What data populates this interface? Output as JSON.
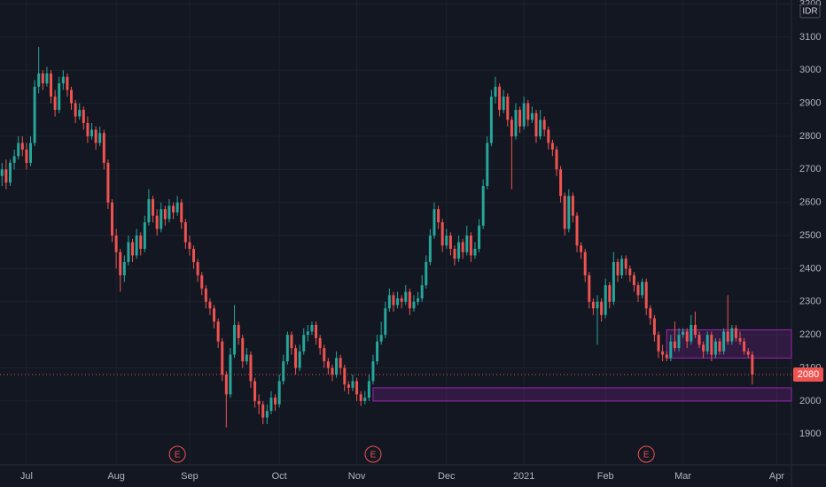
{
  "chart_data": {
    "type": "candlestick",
    "currency": "IDR",
    "up_color": "#26a69a",
    "down_color": "#ef5350",
    "zone_color": "#9c27b0",
    "xlim": [
      -0.5,
      193.6
    ],
    "ylim": [
      1807,
      3212
    ],
    "yticks": [
      1900,
      2000,
      2100,
      2200,
      2300,
      2400,
      2500,
      2600,
      2700,
      2800,
      2900,
      3000,
      3100,
      3200
    ],
    "xticks": [
      {
        "value": 6,
        "label": "Jul"
      },
      {
        "value": 28,
        "label": "Aug"
      },
      {
        "value": 46,
        "label": "Sep"
      },
      {
        "value": 68,
        "label": "Oct"
      },
      {
        "value": 87,
        "label": "Nov"
      },
      {
        "value": 109,
        "label": "Dec"
      },
      {
        "value": 128,
        "label": "2021"
      },
      {
        "value": 148,
        "label": "Feb"
      },
      {
        "value": 167,
        "label": "Mar"
      },
      {
        "value": 190,
        "label": "Apr"
      }
    ],
    "last_price": 2080,
    "zones": [
      {
        "start": 163,
        "low": 2130,
        "high": 2215
      },
      {
        "start": 91,
        "low": 2000,
        "high": 2040
      }
    ],
    "events": [
      {
        "index": 43,
        "label": "E"
      },
      {
        "index": 91,
        "label": "E"
      },
      {
        "index": 158,
        "label": "E"
      }
    ],
    "ohlc": [
      [
        2680,
        2720,
        2650,
        2700
      ],
      [
        2700,
        2730,
        2640,
        2660
      ],
      [
        2660,
        2730,
        2650,
        2720
      ],
      [
        2720,
        2760,
        2700,
        2740
      ],
      [
        2740,
        2800,
        2730,
        2780
      ],
      [
        2780,
        2800,
        2740,
        2760
      ],
      [
        2760,
        2780,
        2700,
        2720
      ],
      [
        2720,
        2800,
        2710,
        2780
      ],
      [
        2780,
        2970,
        2770,
        2950
      ],
      [
        2950,
        3070,
        2930,
        2990
      ],
      [
        2990,
        3000,
        2940,
        2960
      ],
      [
        2960,
        3010,
        2950,
        2990
      ],
      [
        2990,
        3000,
        2900,
        2920
      ],
      [
        2920,
        2940,
        2860,
        2880
      ],
      [
        2880,
        2980,
        2870,
        2960
      ],
      [
        2960,
        3000,
        2940,
        2980
      ],
      [
        2980,
        2990,
        2920,
        2940
      ],
      [
        2940,
        2950,
        2880,
        2900
      ],
      [
        2900,
        2910,
        2840,
        2860
      ],
      [
        2860,
        2900,
        2850,
        2880
      ],
      [
        2880,
        2890,
        2820,
        2840
      ],
      [
        2840,
        2860,
        2780,
        2800
      ],
      [
        2800,
        2840,
        2790,
        2820
      ],
      [
        2820,
        2830,
        2760,
        2780
      ],
      [
        2780,
        2830,
        2770,
        2810
      ],
      [
        2810,
        2820,
        2700,
        2720
      ],
      [
        2720,
        2730,
        2580,
        2600
      ],
      [
        2600,
        2610,
        2480,
        2500
      ],
      [
        2500,
        2520,
        2400,
        2450
      ],
      [
        2450,
        2460,
        2330,
        2380
      ],
      [
        2380,
        2440,
        2360,
        2420
      ],
      [
        2420,
        2500,
        2410,
        2480
      ],
      [
        2480,
        2490,
        2420,
        2440
      ],
      [
        2440,
        2520,
        2430,
        2500
      ],
      [
        2500,
        2510,
        2440,
        2460
      ],
      [
        2460,
        2560,
        2450,
        2540
      ],
      [
        2540,
        2640,
        2530,
        2610
      ],
      [
        2610,
        2620,
        2540,
        2560
      ],
      [
        2560,
        2580,
        2500,
        2520
      ],
      [
        2520,
        2600,
        2510,
        2580
      ],
      [
        2580,
        2590,
        2530,
        2550
      ],
      [
        2550,
        2610,
        2540,
        2590
      ],
      [
        2590,
        2600,
        2550,
        2570
      ],
      [
        2570,
        2620,
        2560,
        2600
      ],
      [
        2600,
        2610,
        2520,
        2540
      ],
      [
        2540,
        2550,
        2460,
        2480
      ],
      [
        2480,
        2500,
        2440,
        2460
      ],
      [
        2460,
        2470,
        2400,
        2420
      ],
      [
        2420,
        2430,
        2360,
        2380
      ],
      [
        2380,
        2390,
        2320,
        2340
      ],
      [
        2340,
        2350,
        2280,
        2300
      ],
      [
        2300,
        2310,
        2260,
        2280
      ],
      [
        2280,
        2290,
        2220,
        2240
      ],
      [
        2240,
        2250,
        2160,
        2180
      ],
      [
        2180,
        2190,
        2060,
        2080
      ],
      [
        2080,
        2090,
        1920,
        2020
      ],
      [
        2020,
        2160,
        2010,
        2140
      ],
      [
        2140,
        2290,
        2130,
        2230
      ],
      [
        2230,
        2240,
        2170,
        2190
      ],
      [
        2190,
        2200,
        2100,
        2120
      ],
      [
        2120,
        2160,
        2110,
        2140
      ],
      [
        2140,
        2150,
        2040,
        2060
      ],
      [
        2060,
        2070,
        1980,
        2000
      ],
      [
        2000,
        2020,
        1960,
        1990
      ],
      [
        1990,
        2000,
        1930,
        1950
      ],
      [
        1950,
        1990,
        1930,
        1970
      ],
      [
        1970,
        2030,
        1960,
        2010
      ],
      [
        2010,
        2020,
        1970,
        1990
      ],
      [
        1990,
        2080,
        1980,
        2060
      ],
      [
        2060,
        2140,
        2050,
        2120
      ],
      [
        2120,
        2210,
        2110,
        2200
      ],
      [
        2200,
        2210,
        2140,
        2160
      ],
      [
        2160,
        2170,
        2080,
        2100
      ],
      [
        2100,
        2170,
        2090,
        2150
      ],
      [
        2150,
        2220,
        2140,
        2200
      ],
      [
        2200,
        2230,
        2180,
        2210
      ],
      [
        2210,
        2240,
        2200,
        2230
      ],
      [
        2230,
        2240,
        2170,
        2190
      ],
      [
        2190,
        2200,
        2140,
        2160
      ],
      [
        2160,
        2170,
        2100,
        2120
      ],
      [
        2120,
        2130,
        2080,
        2100
      ],
      [
        2100,
        2110,
        2060,
        2080
      ],
      [
        2080,
        2150,
        2070,
        2130
      ],
      [
        2130,
        2140,
        2080,
        2100
      ],
      [
        2100,
        2110,
        2030,
        2050
      ],
      [
        2050,
        2060,
        2020,
        2040
      ],
      [
        2040,
        2080,
        2030,
        2060
      ],
      [
        2060,
        2070,
        2000,
        2020
      ],
      [
        2020,
        2030,
        1985,
        2000
      ],
      [
        2000,
        2030,
        1990,
        2010
      ],
      [
        2010,
        2080,
        2000,
        2060
      ],
      [
        2060,
        2140,
        2050,
        2120
      ],
      [
        2120,
        2200,
        2110,
        2180
      ],
      [
        2180,
        2240,
        2170,
        2200
      ],
      [
        2200,
        2300,
        2190,
        2280
      ],
      [
        2280,
        2340,
        2270,
        2320
      ],
      [
        2320,
        2330,
        2270,
        2290
      ],
      [
        2290,
        2330,
        2280,
        2310
      ],
      [
        2310,
        2320,
        2280,
        2300
      ],
      [
        2300,
        2350,
        2290,
        2330
      ],
      [
        2330,
        2340,
        2260,
        2280
      ],
      [
        2280,
        2320,
        2270,
        2300
      ],
      [
        2300,
        2330,
        2290,
        2310
      ],
      [
        2310,
        2380,
        2300,
        2350
      ],
      [
        2350,
        2440,
        2340,
        2420
      ],
      [
        2420,
        2520,
        2410,
        2500
      ],
      [
        2500,
        2600,
        2490,
        2580
      ],
      [
        2580,
        2590,
        2520,
        2540
      ],
      [
        2540,
        2550,
        2450,
        2470
      ],
      [
        2470,
        2520,
        2460,
        2500
      ],
      [
        2500,
        2510,
        2440,
        2460
      ],
      [
        2460,
        2470,
        2410,
        2430
      ],
      [
        2430,
        2500,
        2420,
        2480
      ],
      [
        2480,
        2490,
        2430,
        2450
      ],
      [
        2450,
        2530,
        2440,
        2500
      ],
      [
        2500,
        2510,
        2420,
        2440
      ],
      [
        2440,
        2480,
        2430,
        2460
      ],
      [
        2460,
        2550,
        2450,
        2530
      ],
      [
        2530,
        2670,
        2520,
        2650
      ],
      [
        2650,
        2800,
        2640,
        2780
      ],
      [
        2780,
        2940,
        2770,
        2920
      ],
      [
        2920,
        2980,
        2900,
        2950
      ],
      [
        2950,
        2960,
        2860,
        2880
      ],
      [
        2880,
        2940,
        2870,
        2920
      ],
      [
        2920,
        2930,
        2830,
        2850
      ],
      [
        2850,
        2860,
        2640,
        2800
      ],
      [
        2800,
        2900,
        2790,
        2880
      ],
      [
        2880,
        2890,
        2810,
        2830
      ],
      [
        2830,
        2920,
        2820,
        2900
      ],
      [
        2900,
        2910,
        2830,
        2850
      ],
      [
        2850,
        2890,
        2840,
        2870
      ],
      [
        2870,
        2880,
        2780,
        2800
      ],
      [
        2800,
        2880,
        2790,
        2850
      ],
      [
        2850,
        2860,
        2800,
        2820
      ],
      [
        2820,
        2830,
        2760,
        2780
      ],
      [
        2780,
        2790,
        2740,
        2760
      ],
      [
        2760,
        2770,
        2680,
        2700
      ],
      [
        2700,
        2710,
        2600,
        2620
      ],
      [
        2620,
        2630,
        2500,
        2520
      ],
      [
        2520,
        2640,
        2510,
        2620
      ],
      [
        2620,
        2630,
        2540,
        2560
      ],
      [
        2560,
        2570,
        2450,
        2470
      ],
      [
        2470,
        2480,
        2430,
        2450
      ],
      [
        2450,
        2460,
        2360,
        2380
      ],
      [
        2380,
        2390,
        2280,
        2300
      ],
      [
        2300,
        2310,
        2260,
        2280
      ],
      [
        2280,
        2320,
        2170,
        2300
      ],
      [
        2300,
        2310,
        2240,
        2260
      ],
      [
        2260,
        2370,
        2250,
        2350
      ],
      [
        2350,
        2360,
        2280,
        2300
      ],
      [
        2300,
        2450,
        2290,
        2420
      ],
      [
        2420,
        2430,
        2360,
        2380
      ],
      [
        2380,
        2440,
        2370,
        2430
      ],
      [
        2430,
        2440,
        2380,
        2400
      ],
      [
        2400,
        2410,
        2360,
        2380
      ],
      [
        2380,
        2390,
        2330,
        2350
      ],
      [
        2350,
        2360,
        2300,
        2320
      ],
      [
        2320,
        2370,
        2310,
        2360
      ],
      [
        2360,
        2370,
        2260,
        2280
      ],
      [
        2280,
        2290,
        2230,
        2250
      ],
      [
        2250,
        2260,
        2180,
        2200
      ],
      [
        2200,
        2210,
        2130,
        2150
      ],
      [
        2150,
        2170,
        2120,
        2140
      ],
      [
        2140,
        2150,
        2120,
        2130
      ],
      [
        2130,
        2200,
        2120,
        2180
      ],
      [
        2180,
        2240,
        2150,
        2160
      ],
      [
        2160,
        2220,
        2150,
        2200
      ],
      [
        2200,
        2220,
        2190,
        2210
      ],
      [
        2210,
        2220,
        2160,
        2180
      ],
      [
        2180,
        2260,
        2170,
        2230
      ],
      [
        2230,
        2270,
        2190,
        2200
      ],
      [
        2200,
        2210,
        2160,
        2170
      ],
      [
        2170,
        2180,
        2130,
        2150
      ],
      [
        2150,
        2210,
        2140,
        2200
      ],
      [
        2200,
        2210,
        2120,
        2140
      ],
      [
        2140,
        2190,
        2130,
        2180
      ],
      [
        2180,
        2190,
        2140,
        2150
      ],
      [
        2150,
        2220,
        2140,
        2210
      ],
      [
        2210,
        2320,
        2170,
        2180
      ],
      [
        2180,
        2230,
        2170,
        2220
      ],
      [
        2220,
        2230,
        2180,
        2190
      ],
      [
        2190,
        2210,
        2170,
        2180
      ],
      [
        2180,
        2190,
        2140,
        2150
      ],
      [
        2150,
        2160,
        2130,
        2140
      ],
      [
        2140,
        2150,
        2050,
        2080
      ]
    ]
  }
}
